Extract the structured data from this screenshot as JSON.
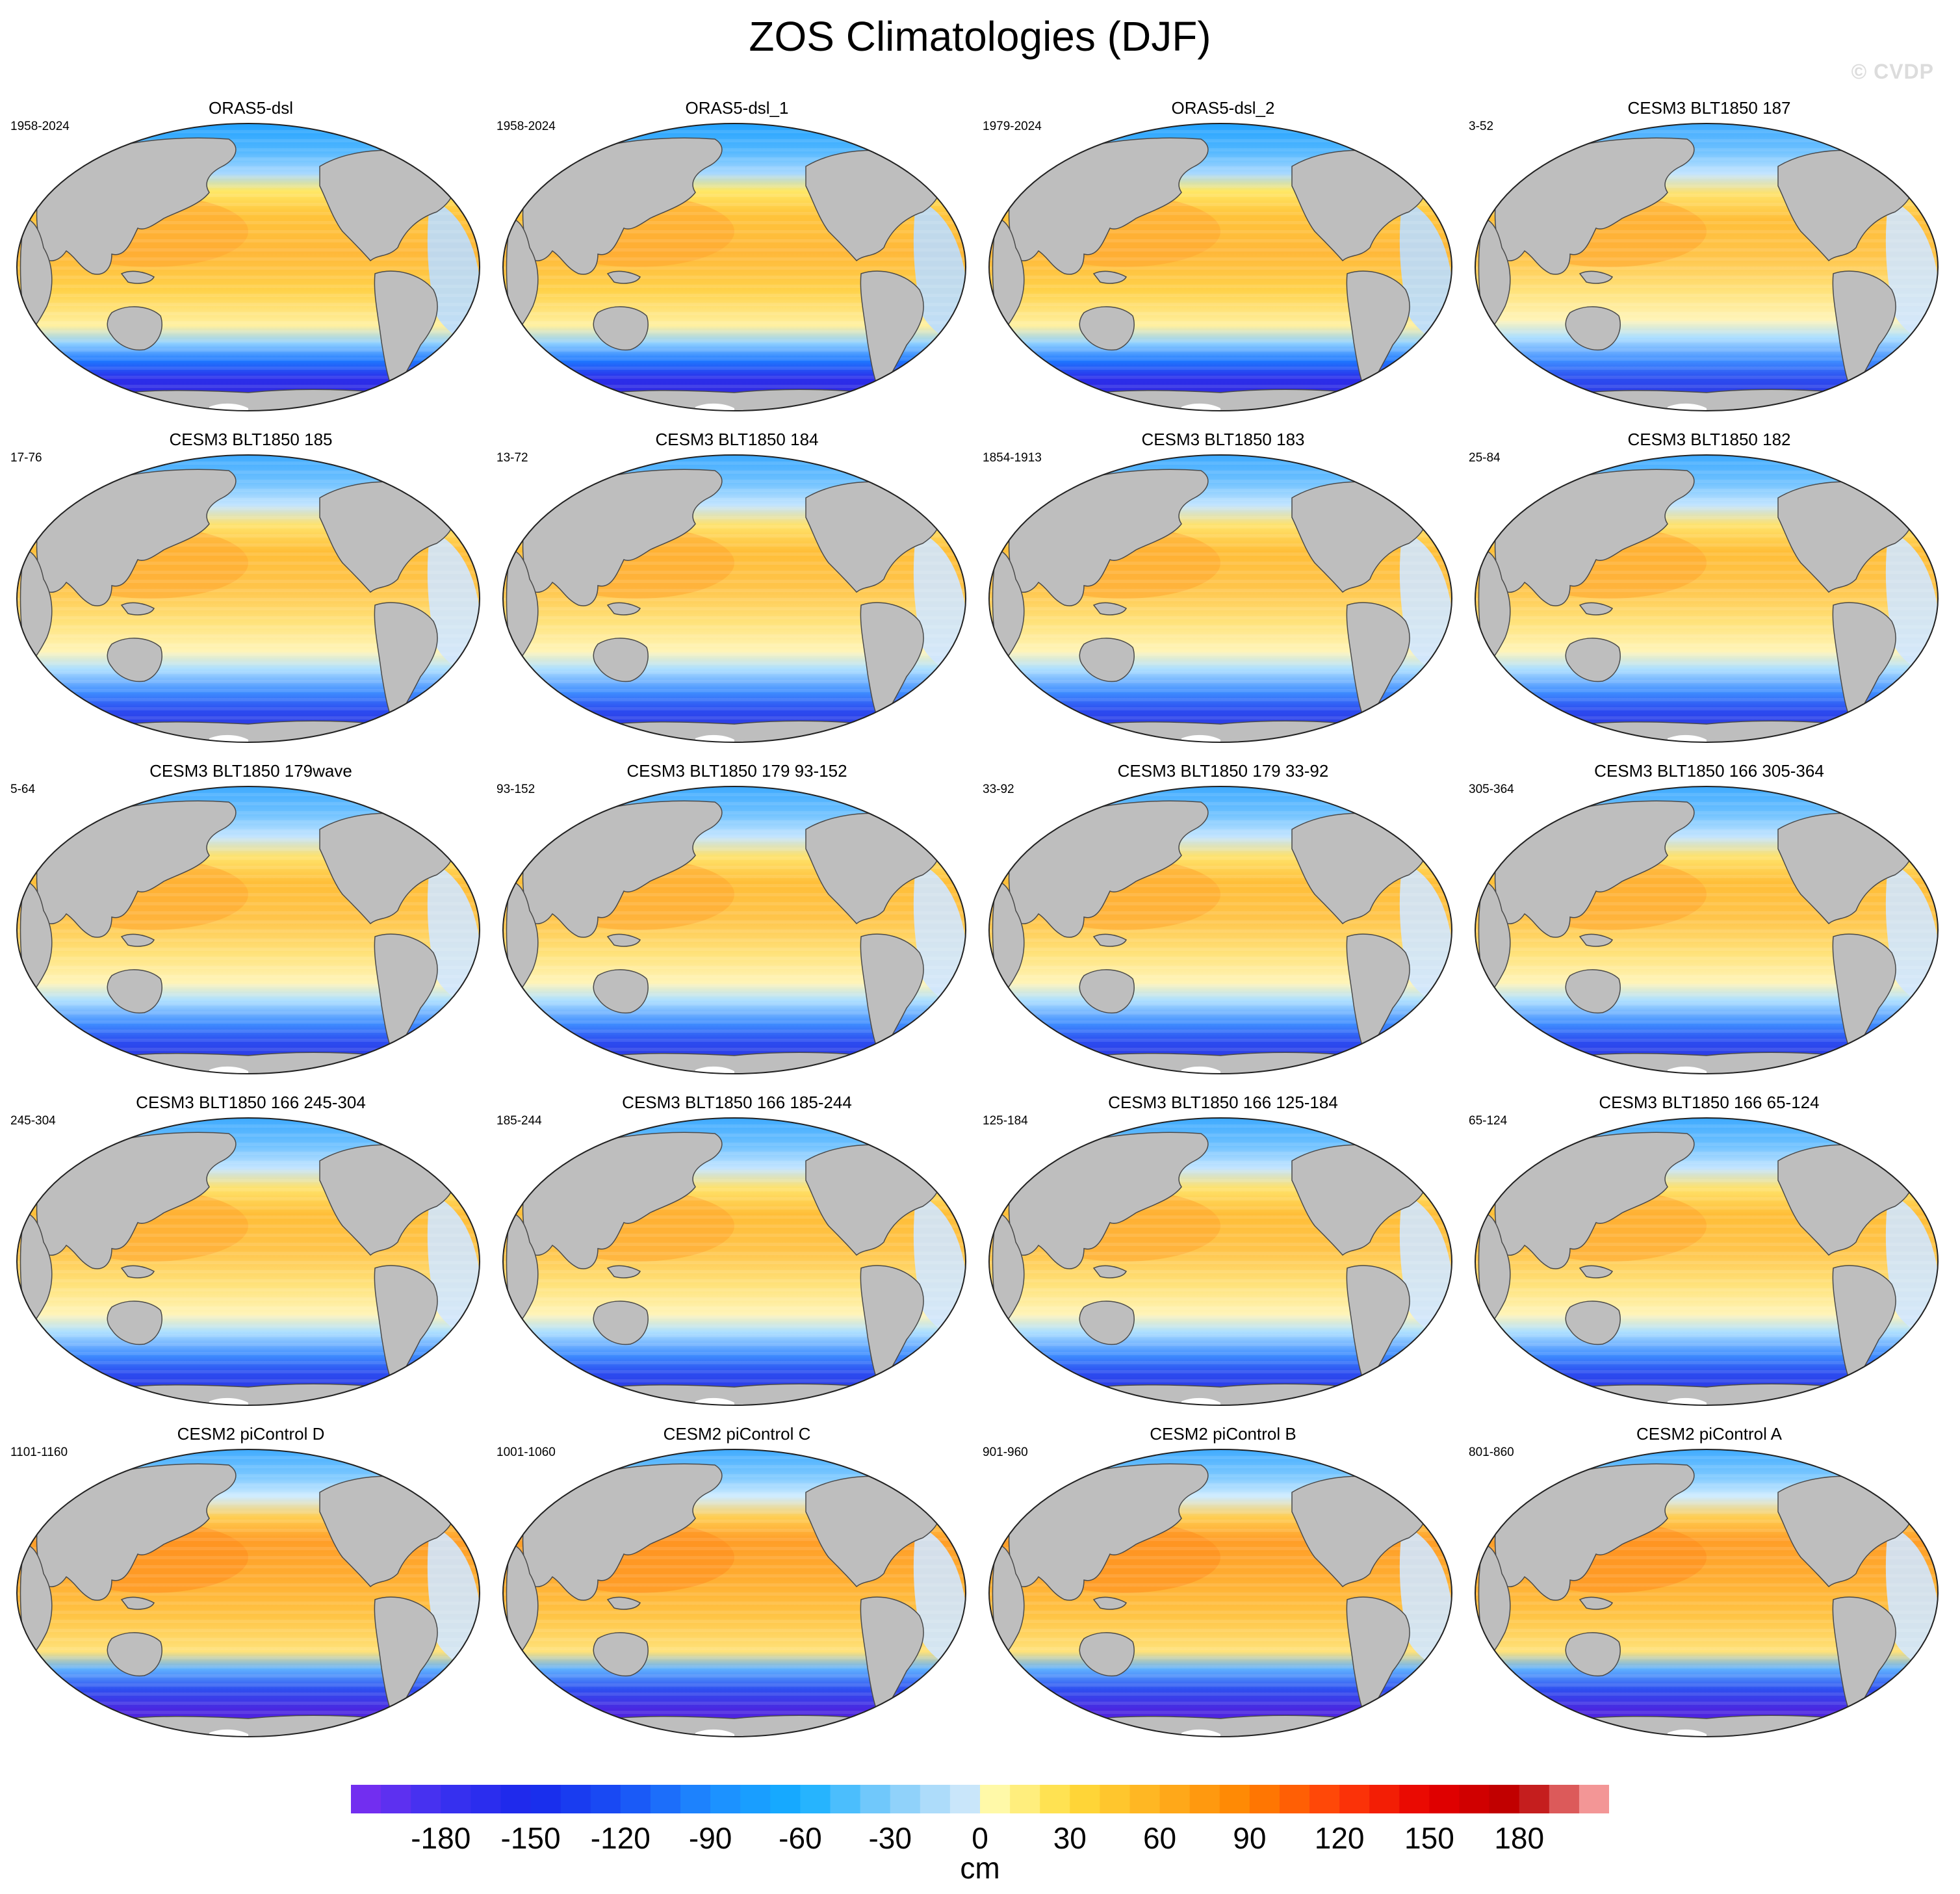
{
  "title": "ZOS Climatologies (DJF)",
  "watermark": "© CVDP",
  "panels": [
    {
      "name": "ORAS5-dsl",
      "period": "1958-2024",
      "style": "obs"
    },
    {
      "name": "ORAS5-dsl_1",
      "period": "1958-2024",
      "style": "obs"
    },
    {
      "name": "ORAS5-dsl_2",
      "period": "1979-2024",
      "style": "obs"
    },
    {
      "name": "CESM3 BLT1850 187",
      "period": "3-52",
      "style": "cesm3"
    },
    {
      "name": "CESM3 BLT1850 185",
      "period": "17-76",
      "style": "cesm3"
    },
    {
      "name": "CESM3 BLT1850 184",
      "period": "13-72",
      "style": "cesm3"
    },
    {
      "name": "CESM3 BLT1850 183",
      "period": "1854-1913",
      "style": "cesm3"
    },
    {
      "name": "CESM3 BLT1850 182",
      "period": "25-84",
      "style": "cesm3"
    },
    {
      "name": "CESM3 BLT1850 179wave",
      "period": "5-64",
      "style": "cesm3"
    },
    {
      "name": "CESM3 BLT1850 179 93-152",
      "period": "93-152",
      "style": "cesm3"
    },
    {
      "name": "CESM3 BLT1850 179 33-92",
      "period": "33-92",
      "style": "cesm3"
    },
    {
      "name": "CESM3 BLT1850 166 305-364",
      "period": "305-364",
      "style": "cesm3"
    },
    {
      "name": "CESM3 BLT1850 166 245-304",
      "period": "245-304",
      "style": "cesm3"
    },
    {
      "name": "CESM3 BLT1850 166 185-244",
      "period": "185-244",
      "style": "cesm3"
    },
    {
      "name": "CESM3 BLT1850 166 125-184",
      "period": "125-184",
      "style": "cesm3"
    },
    {
      "name": "CESM3 BLT1850 166 65-124",
      "period": "65-124",
      "style": "cesm3"
    },
    {
      "name": "CESM2 piControl D",
      "period": "1101-1160",
      "style": "cesm2"
    },
    {
      "name": "CESM2 piControl C",
      "period": "1001-1060",
      "style": "cesm2"
    },
    {
      "name": "CESM2 piControl B",
      "period": "901-960",
      "style": "cesm2"
    },
    {
      "name": "CESM2 piControl A",
      "period": "801-860",
      "style": "cesm2"
    }
  ],
  "colorbar": {
    "min": -210,
    "max": 210,
    "step": 10,
    "tick_labels": [
      "-180",
      "-150",
      "-120",
      "-90",
      "-60",
      "-30",
      "0",
      "30",
      "60",
      "90",
      "120",
      "150",
      "180"
    ],
    "units": "cm"
  },
  "colors": {
    "land": "#bebebe",
    "coast": "#4a4a4a"
  }
}
